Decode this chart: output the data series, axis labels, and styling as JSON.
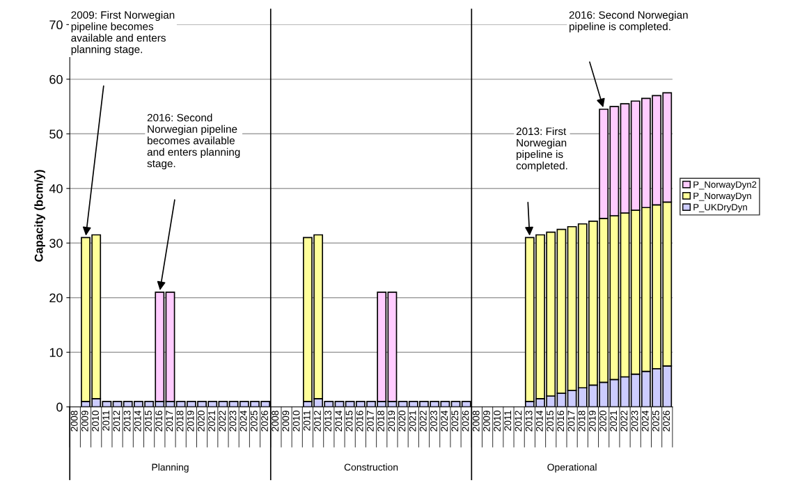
{
  "chart_data": {
    "type": "bar",
    "stacked": true,
    "ylabel": "Capacity (bcm/y)",
    "categories": [
      "2008",
      "2009",
      "2010",
      "2011",
      "2012",
      "2013",
      "2014",
      "2015",
      "2016",
      "2017",
      "2018",
      "2019",
      "2020",
      "2021",
      "2022",
      "2023",
      "2024",
      "2025",
      "2026",
      "2008",
      "2009",
      "2010",
      "2011",
      "2012",
      "2013",
      "2014",
      "2015",
      "2016",
      "2017",
      "2018",
      "2019",
      "2020",
      "2021",
      "2022",
      "2023",
      "2024",
      "2025",
      "2026",
      "2008",
      "2009",
      "2010",
      "2011",
      "2012",
      "2013",
      "2014",
      "2015",
      "2016",
      "2017",
      "2018",
      "2019",
      "2020",
      "2021",
      "2022",
      "2023",
      "2024",
      "2025",
      "2026"
    ],
    "series": [
      {
        "name": "P_UKDryDyn",
        "color": "#ccccff",
        "values": [
          null,
          1,
          1.5,
          1,
          1,
          1,
          1,
          1,
          1,
          1,
          1,
          1,
          1,
          1,
          1,
          1,
          1,
          1,
          1,
          null,
          null,
          null,
          1,
          1.5,
          1,
          1,
          1,
          1,
          1,
          1,
          1,
          1,
          1,
          1,
          1,
          1,
          1,
          1,
          null,
          null,
          null,
          null,
          null,
          1,
          1.5,
          2,
          2.5,
          3,
          3.5,
          4,
          4.5,
          5,
          5.5,
          6,
          6.5,
          7,
          7.5
        ]
      },
      {
        "name": "P_NorwayDyn",
        "color": "#ffff99",
        "values": [
          null,
          30,
          30,
          null,
          null,
          null,
          null,
          null,
          null,
          null,
          null,
          null,
          null,
          null,
          null,
          null,
          null,
          null,
          null,
          null,
          null,
          null,
          30,
          30,
          null,
          null,
          null,
          null,
          null,
          null,
          null,
          null,
          null,
          null,
          null,
          null,
          null,
          null,
          null,
          null,
          null,
          null,
          null,
          30,
          30,
          30,
          30,
          30,
          30,
          30,
          30,
          30,
          30,
          30,
          30,
          30,
          30
        ]
      },
      {
        "name": "P_NorwayDyn2",
        "color": "#ffccff",
        "values": [
          null,
          null,
          null,
          null,
          null,
          null,
          null,
          null,
          20,
          20,
          null,
          null,
          null,
          null,
          null,
          null,
          null,
          null,
          null,
          null,
          null,
          null,
          null,
          null,
          null,
          null,
          null,
          null,
          null,
          20,
          20,
          null,
          null,
          null,
          null,
          null,
          null,
          null,
          null,
          null,
          null,
          null,
          null,
          null,
          null,
          null,
          null,
          null,
          null,
          null,
          20,
          20,
          20,
          20,
          20,
          20,
          20
        ]
      }
    ],
    "ylim": [
      0,
      70
    ],
    "yticks": [
      0,
      10,
      20,
      30,
      40,
      50,
      60,
      70
    ],
    "grid": "y",
    "legend": "right",
    "annotations": [
      "2009: First Norwegian\npipeline becomes\navailable and enters\nplanning stage.",
      "2016: Second\nNorwegian pipeline\nbecomes available\nand enters planning\nstage.",
      "2013: First\nNorwegian\npipeline is\ncompleted.",
      "2016: Second Norwegian\npipeline is completed.",
      "Planning",
      "Construction",
      "Operational"
    ]
  }
}
